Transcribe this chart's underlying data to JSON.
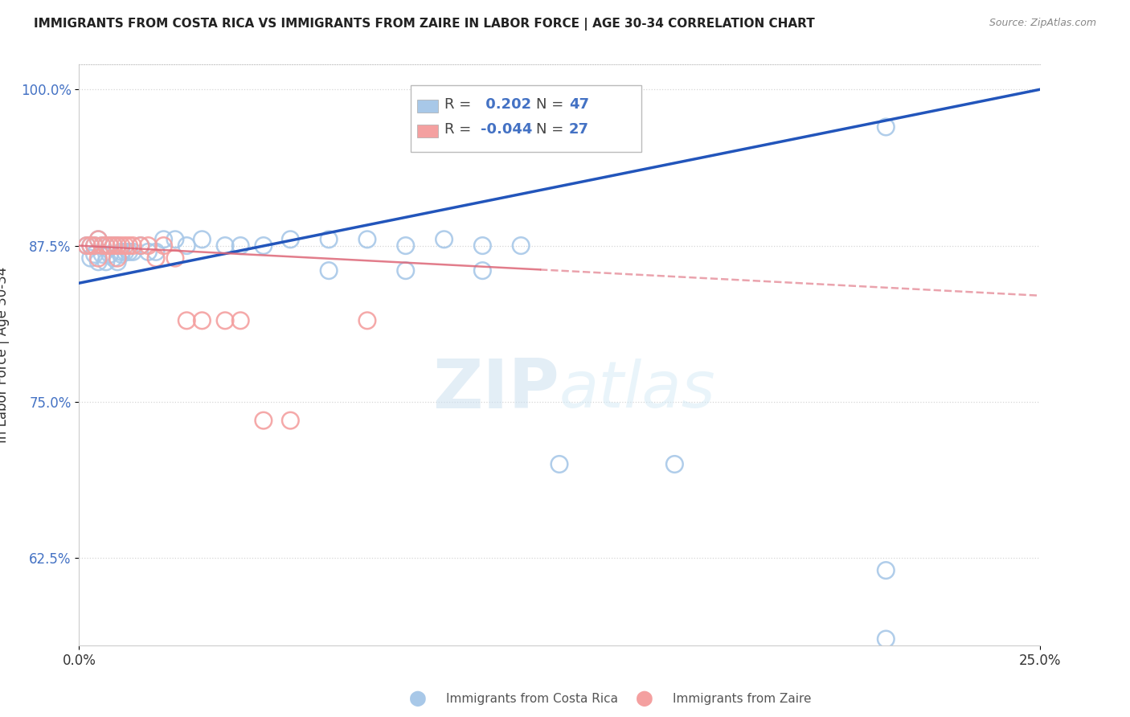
{
  "title": "IMMIGRANTS FROM COSTA RICA VS IMMIGRANTS FROM ZAIRE IN LABOR FORCE | AGE 30-34 CORRELATION CHART",
  "source": "Source: ZipAtlas.com",
  "ylabel": "In Labor Force | Age 30-34",
  "xlim": [
    0.0,
    0.25
  ],
  "ylim": [
    0.555,
    1.02
  ],
  "x_ticks": [
    0.0,
    0.25
  ],
  "x_tick_labels": [
    "0.0%",
    "25.0%"
  ],
  "y_ticks": [
    0.625,
    0.75,
    0.875,
    1.0
  ],
  "y_tick_labels": [
    "62.5%",
    "75.0%",
    "87.5%",
    "100.0%"
  ],
  "R_blue": 0.202,
  "N_blue": 47,
  "R_pink": -0.044,
  "N_pink": 27,
  "blue_color": "#a8c8e8",
  "pink_color": "#f4a0a0",
  "trend_blue_color": "#2255bb",
  "trend_pink_color": "#dd6677",
  "legend_label_blue": "Immigrants from Costa Rica",
  "legend_label_pink": "Immigrants from Zaire",
  "watermark_zip": "ZIP",
  "watermark_atlas": "atlas",
  "blue_trend_x0": 0.0,
  "blue_trend_y0": 0.845,
  "blue_trend_x1": 0.25,
  "blue_trend_y1": 1.0,
  "pink_trend_x0": 0.0,
  "pink_trend_y0": 0.875,
  "pink_trend_x1": 0.25,
  "pink_trend_y1": 0.835,
  "blue_scatter_x": [
    0.002,
    0.003,
    0.003,
    0.004,
    0.004,
    0.005,
    0.005,
    0.006,
    0.006,
    0.007,
    0.007,
    0.008,
    0.008,
    0.009,
    0.009,
    0.01,
    0.01,
    0.011,
    0.011,
    0.012,
    0.013,
    0.014,
    0.016,
    0.018,
    0.02,
    0.022,
    0.025,
    0.028,
    0.032,
    0.038,
    0.042,
    0.048,
    0.055,
    0.065,
    0.075,
    0.085,
    0.095,
    0.105,
    0.115,
    0.065,
    0.085,
    0.105,
    0.21,
    0.125,
    0.155,
    0.21,
    0.21
  ],
  "blue_scatter_y": [
    0.875,
    0.875,
    0.865,
    0.875,
    0.868,
    0.88,
    0.862,
    0.875,
    0.868,
    0.875,
    0.862,
    0.875,
    0.868,
    0.875,
    0.865,
    0.875,
    0.862,
    0.87,
    0.868,
    0.87,
    0.87,
    0.87,
    0.875,
    0.87,
    0.87,
    0.88,
    0.88,
    0.875,
    0.88,
    0.875,
    0.875,
    0.875,
    0.88,
    0.88,
    0.88,
    0.875,
    0.88,
    0.875,
    0.875,
    0.855,
    0.855,
    0.855,
    0.97,
    0.7,
    0.7,
    0.615,
    0.56
  ],
  "pink_scatter_x": [
    0.002,
    0.003,
    0.004,
    0.005,
    0.005,
    0.006,
    0.007,
    0.008,
    0.009,
    0.01,
    0.01,
    0.011,
    0.012,
    0.013,
    0.014,
    0.016,
    0.018,
    0.02,
    0.022,
    0.025,
    0.028,
    0.032,
    0.038,
    0.042,
    0.048,
    0.055,
    0.075
  ],
  "pink_scatter_y": [
    0.875,
    0.875,
    0.875,
    0.88,
    0.865,
    0.875,
    0.875,
    0.875,
    0.875,
    0.875,
    0.865,
    0.875,
    0.875,
    0.875,
    0.875,
    0.875,
    0.875,
    0.865,
    0.875,
    0.865,
    0.815,
    0.815,
    0.815,
    0.815,
    0.735,
    0.735,
    0.815
  ]
}
